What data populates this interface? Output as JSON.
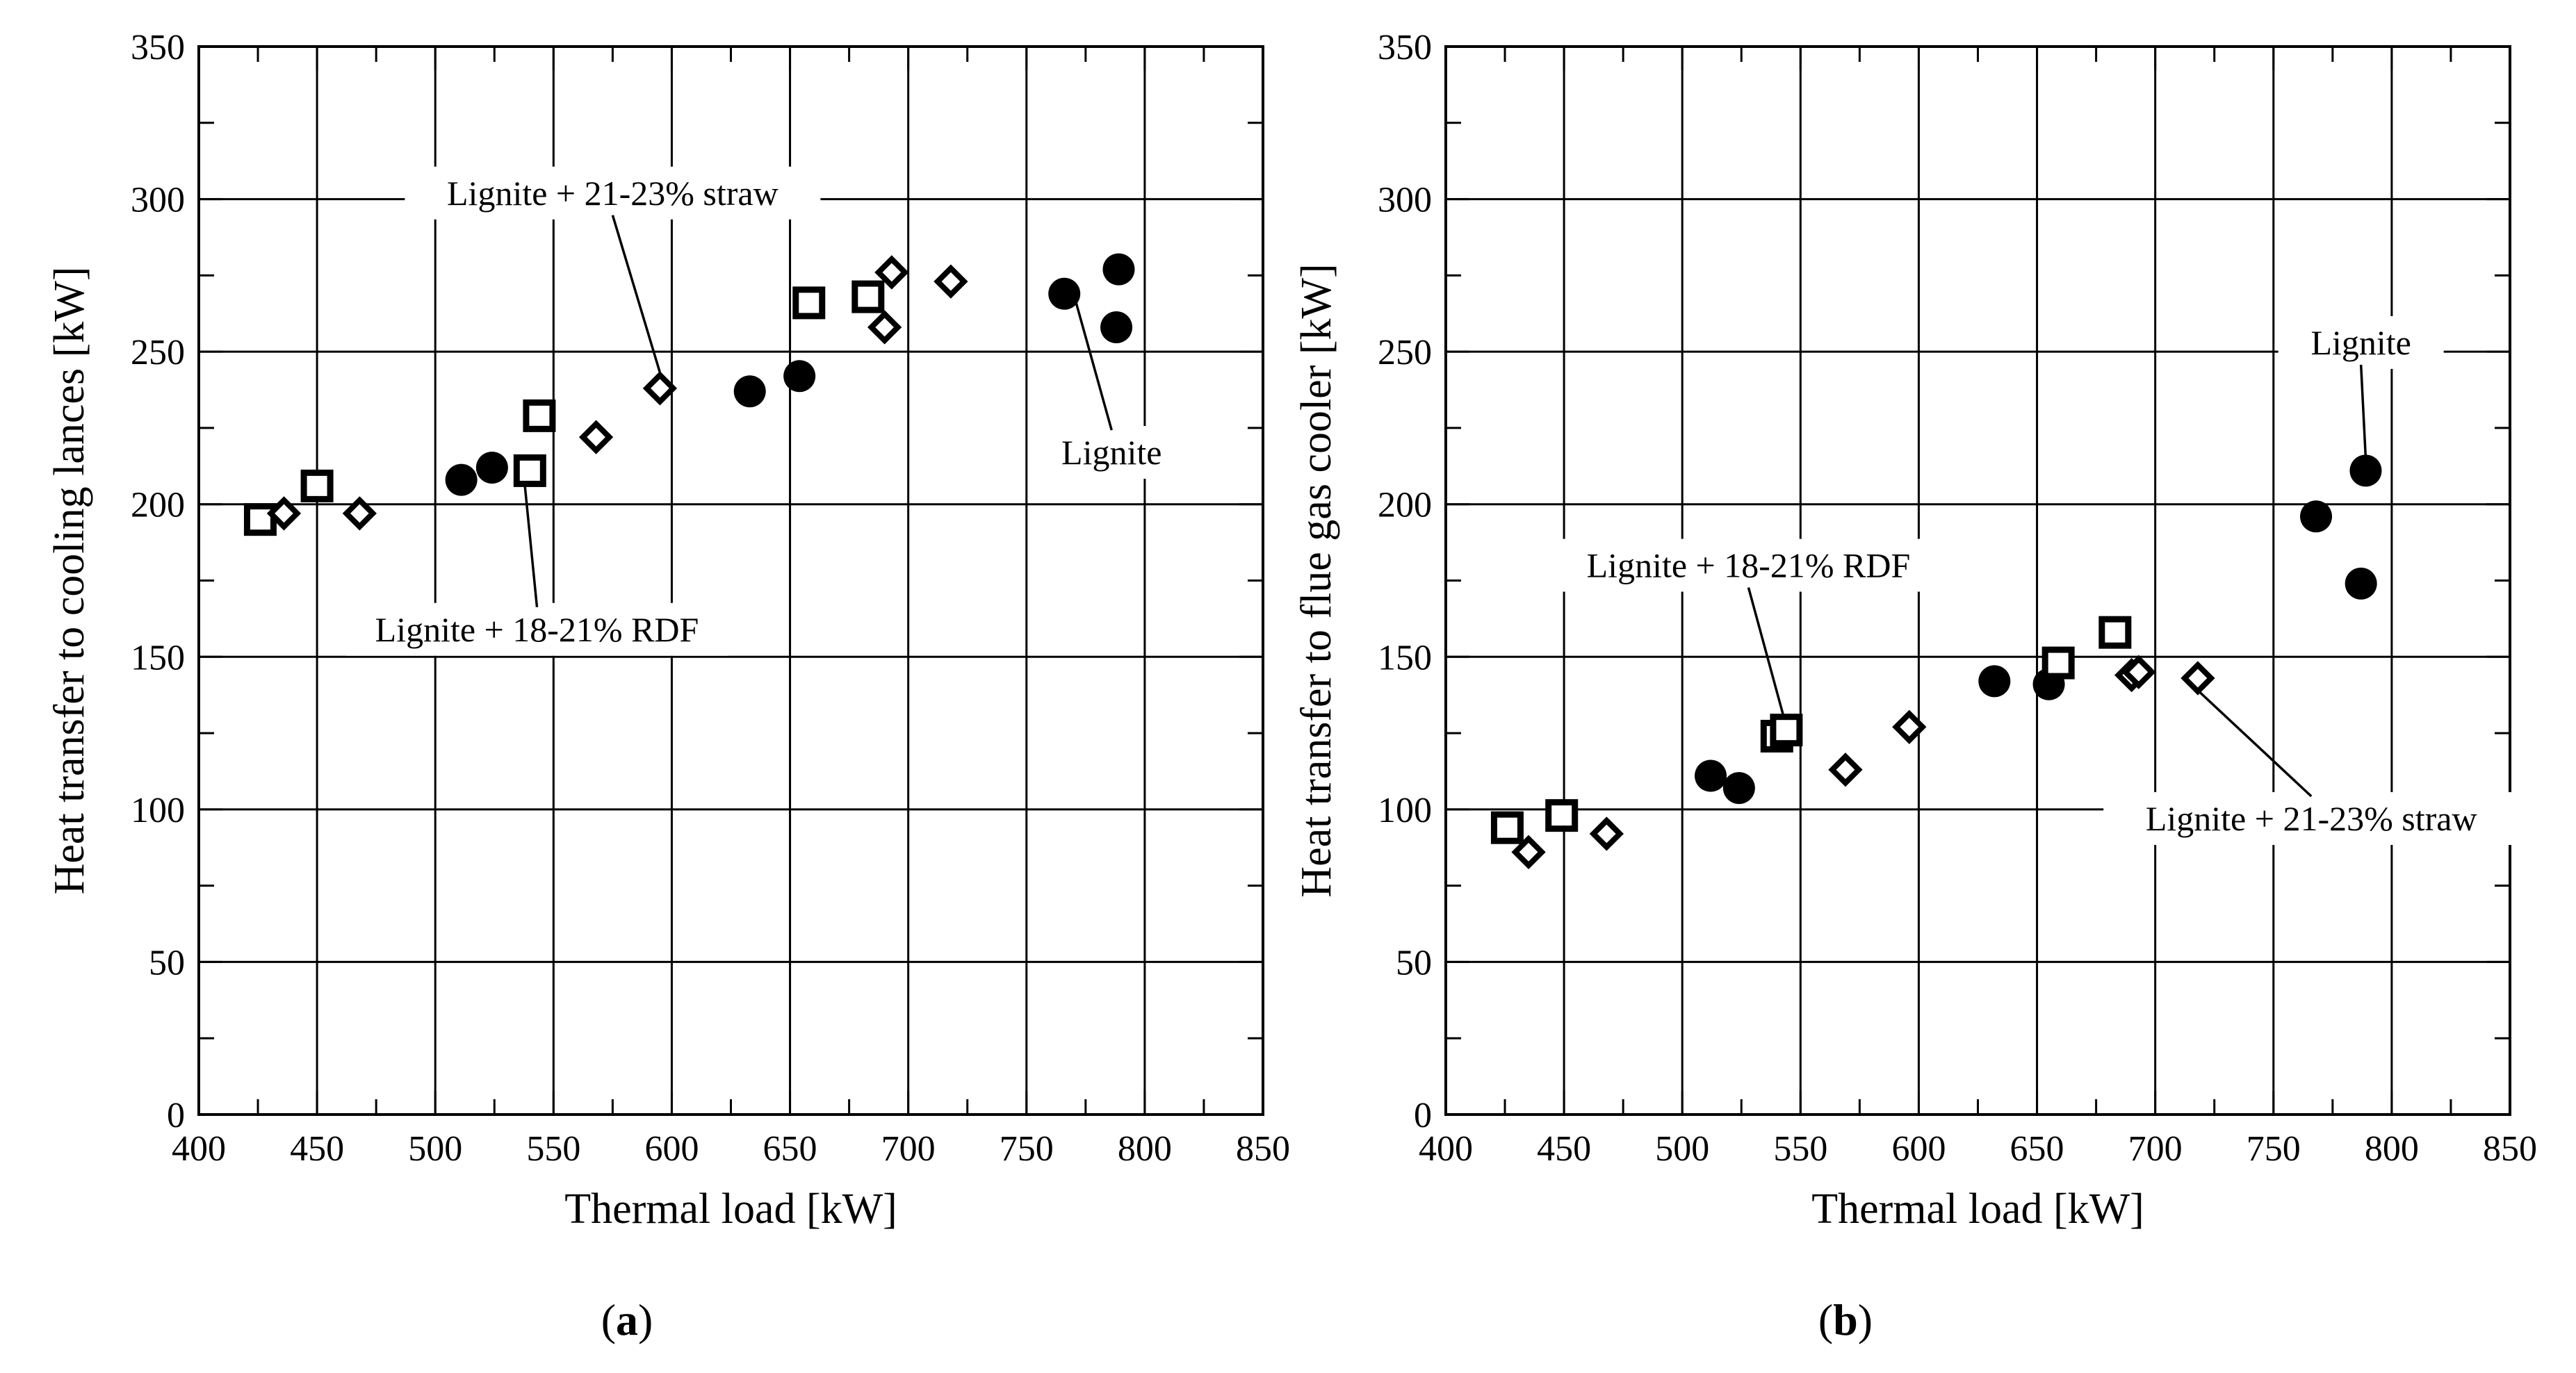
{
  "chart_data": [
    {
      "type": "scatter",
      "panel_label": "a",
      "xlabel": "Thermal load [kW]",
      "ylabel": "Heat transfer to cooling lances [kW]",
      "xlim": [
        400,
        850
      ],
      "ylim": [
        0,
        350
      ],
      "x_ticks": [
        400,
        450,
        500,
        550,
        600,
        650,
        700,
        750,
        800,
        850
      ],
      "y_ticks": [
        0,
        50,
        100,
        150,
        200,
        250,
        300,
        350
      ],
      "grid": true,
      "series": [
        {
          "name": "Lignite",
          "marker": "filled-circle",
          "points": [
            [
              511,
              208
            ],
            [
              524,
              212
            ],
            [
              633,
              237
            ],
            [
              654,
              242
            ],
            [
              766,
              269
            ],
            [
              789,
              277
            ],
            [
              788,
              258
            ]
          ]
        },
        {
          "name": "Lignite + 18-21% RDF",
          "marker": "open-square",
          "points": [
            [
              426,
              195
            ],
            [
              450,
              206
            ],
            [
              540,
              211
            ],
            [
              544,
              229
            ],
            [
              658,
              266
            ],
            [
              683,
              268
            ]
          ]
        },
        {
          "name": "Lignite + 21-23% straw",
          "marker": "open-diamond",
          "points": [
            [
              436,
              197
            ],
            [
              468,
              197
            ],
            [
              568,
              222
            ],
            [
              595,
              238
            ],
            [
              690,
              258
            ],
            [
              693,
              276
            ],
            [
              718,
              273
            ]
          ]
        }
      ],
      "annotations": [
        {
          "text": "Lignite + 21-23% straw",
          "label_at": [
            575,
            302
          ],
          "arrow_to": [
            597,
            238
          ]
        },
        {
          "text": "Lignite + 18-21% RDF",
          "label_at": [
            543,
            159
          ],
          "arrow_to": [
            537,
            213
          ]
        },
        {
          "text": "Lignite",
          "label_at": [
            786,
            217
          ],
          "arrow_to": [
            771,
            266
          ]
        }
      ]
    },
    {
      "type": "scatter",
      "panel_label": "b",
      "xlabel": "Thermal load [kW]",
      "ylabel": "Heat transfer to flue gas cooler [kW]",
      "xlim": [
        400,
        850
      ],
      "ylim": [
        0,
        350
      ],
      "x_ticks": [
        400,
        450,
        500,
        550,
        600,
        650,
        700,
        750,
        800,
        850
      ],
      "y_ticks": [
        0,
        50,
        100,
        150,
        200,
        250,
        300,
        350
      ],
      "grid": true,
      "series": [
        {
          "name": "Lignite",
          "marker": "filled-circle",
          "points": [
            [
              512,
              111
            ],
            [
              524,
              107
            ],
            [
              632,
              142
            ],
            [
              655,
              141
            ],
            [
              768,
              196
            ],
            [
              789,
              211
            ],
            [
              787,
              174
            ]
          ]
        },
        {
          "name": "Lignite + 18-21% RDF",
          "marker": "open-square",
          "points": [
            [
              426,
              94
            ],
            [
              449,
              98
            ],
            [
              540,
              124
            ],
            [
              544,
              126
            ],
            [
              659,
              148
            ],
            [
              683,
              158
            ]
          ]
        },
        {
          "name": "Lignite + 21-23% straw",
          "marker": "open-diamond",
          "points": [
            [
              435,
              86
            ],
            [
              468,
              92
            ],
            [
              569,
              113
            ],
            [
              596,
              127
            ],
            [
              690,
              144
            ],
            [
              693,
              145
            ],
            [
              718,
              143
            ]
          ]
        }
      ],
      "annotations": [
        {
          "text": "Lignite",
          "label_at": [
            787,
            253
          ],
          "arrow_to": [
            789,
            215
          ]
        },
        {
          "text": "Lignite + 18-21% RDF",
          "label_at": [
            528,
            180
          ],
          "arrow_to": [
            543,
            130
          ]
        },
        {
          "text": "Lignite + 21-23% straw",
          "label_at": [
            766,
            97
          ],
          "arrow_to": [
            718,
            139
          ]
        }
      ]
    }
  ]
}
